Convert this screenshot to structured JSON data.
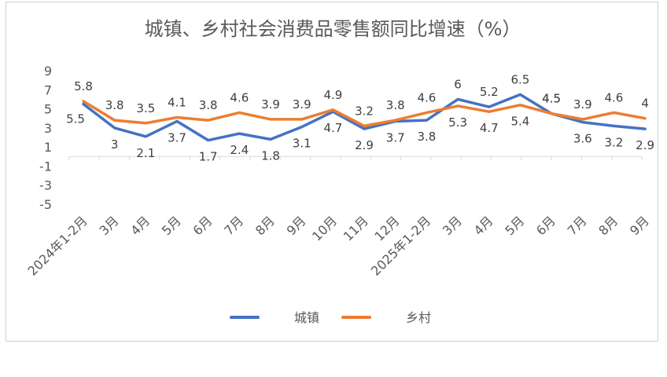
{
  "chart_data": {
    "type": "line",
    "title": "城镇、乡村社会消费品零售额同比增速（%）",
    "categories": [
      "2024年1-2月",
      "3月",
      "4月",
      "5月",
      "6月",
      "7月",
      "8月",
      "9月",
      "10月",
      "11月",
      "12月",
      "2025年1-2月",
      "3月",
      "4月",
      "5月",
      "6月",
      "7月",
      "8月",
      "9月"
    ],
    "series": [
      {
        "name": "城镇",
        "color": "#4472C4",
        "values": [
          5.5,
          3,
          2.1,
          3.7,
          1.7,
          2.4,
          1.8,
          3.1,
          4.7,
          2.9,
          3.7,
          3.8,
          6,
          5.2,
          6.5,
          4.5,
          3.6,
          3.2,
          2.9
        ]
      },
      {
        "name": "乡村",
        "color": "#ED7D31",
        "values": [
          5.8,
          3.8,
          3.5,
          4.1,
          3.8,
          4.6,
          3.9,
          3.9,
          4.9,
          3.2,
          3.8,
          4.6,
          5.3,
          4.7,
          5.4,
          4.5,
          3.9,
          4.6,
          4
        ]
      }
    ],
    "yticks": [
      9,
      7,
      5,
      3,
      1,
      -1,
      -3,
      -5
    ],
    "ylim": [
      -5,
      9
    ],
    "legend": "bottom",
    "grid": false
  }
}
